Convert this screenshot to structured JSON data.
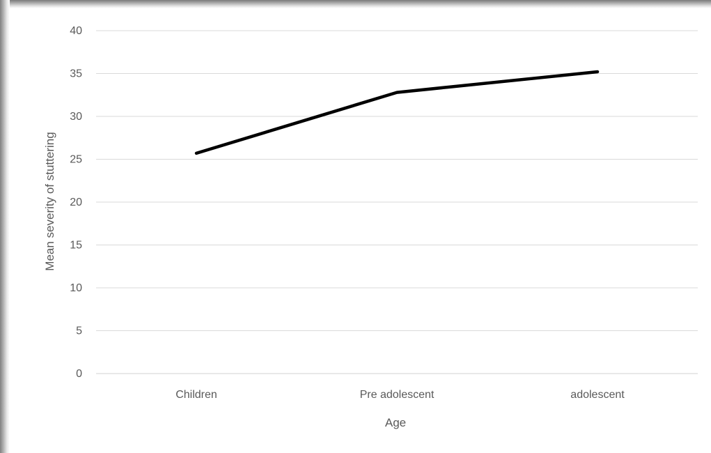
{
  "chart_data": {
    "type": "line",
    "title": "",
    "xlabel": "Age",
    "ylabel": "Mean severity of stuttering",
    "categories": [
      "Children",
      "Pre adolescent",
      "adolescent"
    ],
    "series": [
      {
        "values": [
          25.7,
          32.8,
          35.2
        ],
        "color": "#000000"
      }
    ],
    "ylim": [
      0,
      40
    ],
    "yticks": [
      0,
      5,
      10,
      15,
      20,
      25,
      30,
      35,
      40
    ],
    "grid": true,
    "gridColor": "#d9d9d9",
    "textColor": "#595959"
  }
}
